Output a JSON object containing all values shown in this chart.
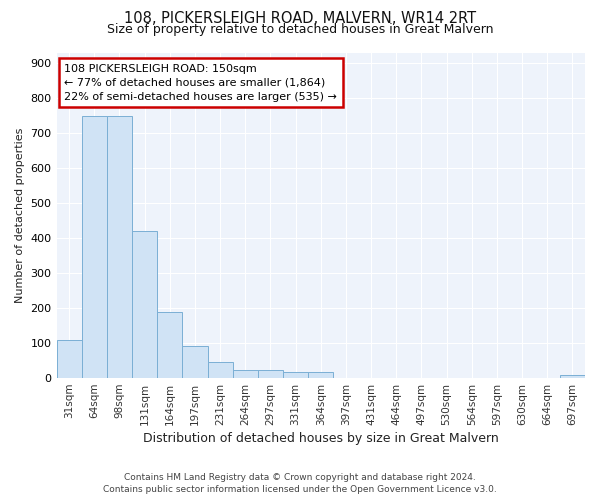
{
  "title": "108, PICKERSLEIGH ROAD, MALVERN, WR14 2RT",
  "subtitle": "Size of property relative to detached houses in Great Malvern",
  "xlabel": "Distribution of detached houses by size in Great Malvern",
  "ylabel": "Number of detached properties",
  "footer_line1": "Contains HM Land Registry data © Crown copyright and database right 2024.",
  "footer_line2": "Contains public sector information licensed under the Open Government Licence v3.0.",
  "categories": [
    "31sqm",
    "64sqm",
    "98sqm",
    "131sqm",
    "164sqm",
    "197sqm",
    "231sqm",
    "264sqm",
    "297sqm",
    "331sqm",
    "364sqm",
    "397sqm",
    "431sqm",
    "464sqm",
    "497sqm",
    "530sqm",
    "564sqm",
    "597sqm",
    "630sqm",
    "664sqm",
    "697sqm"
  ],
  "values": [
    110,
    750,
    750,
    420,
    190,
    93,
    45,
    22,
    22,
    18,
    18,
    0,
    0,
    0,
    0,
    0,
    0,
    0,
    0,
    0,
    8
  ],
  "bar_color": "#d0e3f5",
  "bar_edge_color": "#7aafd4",
  "background_color": "#ffffff",
  "plot_bg_color": "#eef3fb",
  "grid_color": "#ffffff",
  "annotation_box_text": "108 PICKERSLEIGH ROAD: 150sqm\n← 77% of detached houses are smaller (1,864)\n22% of semi-detached houses are larger (535) →",
  "annotation_box_color": "#ffffff",
  "annotation_box_edge_color": "#cc0000",
  "ylim": [
    0,
    930
  ],
  "yticks": [
    0,
    100,
    200,
    300,
    400,
    500,
    600,
    700,
    800,
    900
  ]
}
